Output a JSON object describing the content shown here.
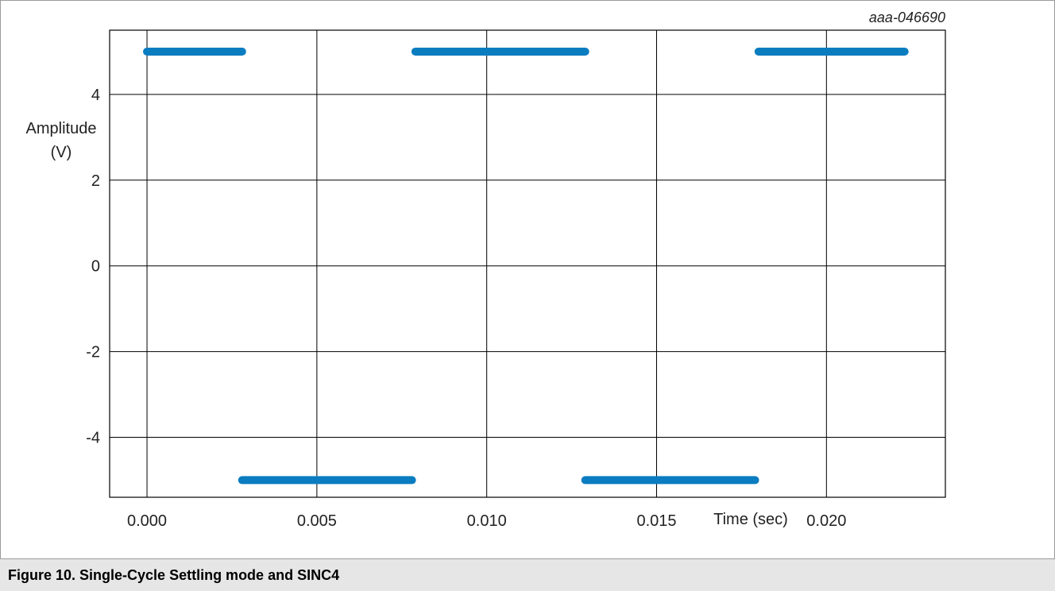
{
  "figure_id": "aaa-046690",
  "caption": "Figure 10.  Single-Cycle Settling mode and SINC4",
  "chart_data": {
    "type": "line",
    "xlabel": "Time (sec)",
    "ylabel_line1": "Amplitude",
    "ylabel_line2": "(V)",
    "xlim": [
      -0.0011,
      0.0235
    ],
    "ylim": [
      -5.4,
      5.5
    ],
    "x_ticks": [
      0.0,
      0.005,
      0.01,
      0.015,
      0.02
    ],
    "x_tick_labels": [
      "0.000",
      "0.005",
      "0.010",
      "0.015",
      "0.020"
    ],
    "y_ticks": [
      4,
      2,
      0,
      -2,
      -4
    ],
    "y_tick_labels": [
      "4",
      "2",
      "0",
      "-2",
      "-4"
    ],
    "grid": true,
    "series_color": "#0a7cc0",
    "segments": [
      {
        "x0": 0.0,
        "x1": 0.0028,
        "y": 5
      },
      {
        "x0": 0.0028,
        "x1": 0.0078,
        "y": -5
      },
      {
        "x0": 0.0079,
        "x1": 0.0129,
        "y": 5
      },
      {
        "x0": 0.0129,
        "x1": 0.0179,
        "y": -5
      },
      {
        "x0": 0.018,
        "x1": 0.0223,
        "y": 5
      }
    ]
  }
}
